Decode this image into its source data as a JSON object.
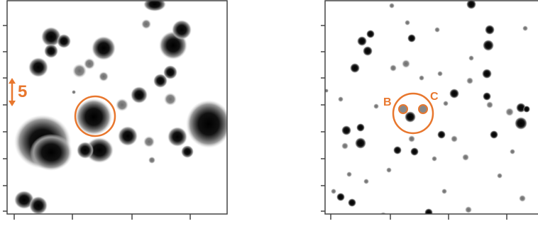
{
  "left_panel": {
    "scale_bar_label": "5"
  },
  "right_panel": {
    "marker_b_label": "B",
    "marker_c_label": "C"
  },
  "colors": {
    "annotation": "#e8772e",
    "frame": "#444444",
    "star_core": "#000000",
    "star_halo": "#8a8a8a"
  }
}
